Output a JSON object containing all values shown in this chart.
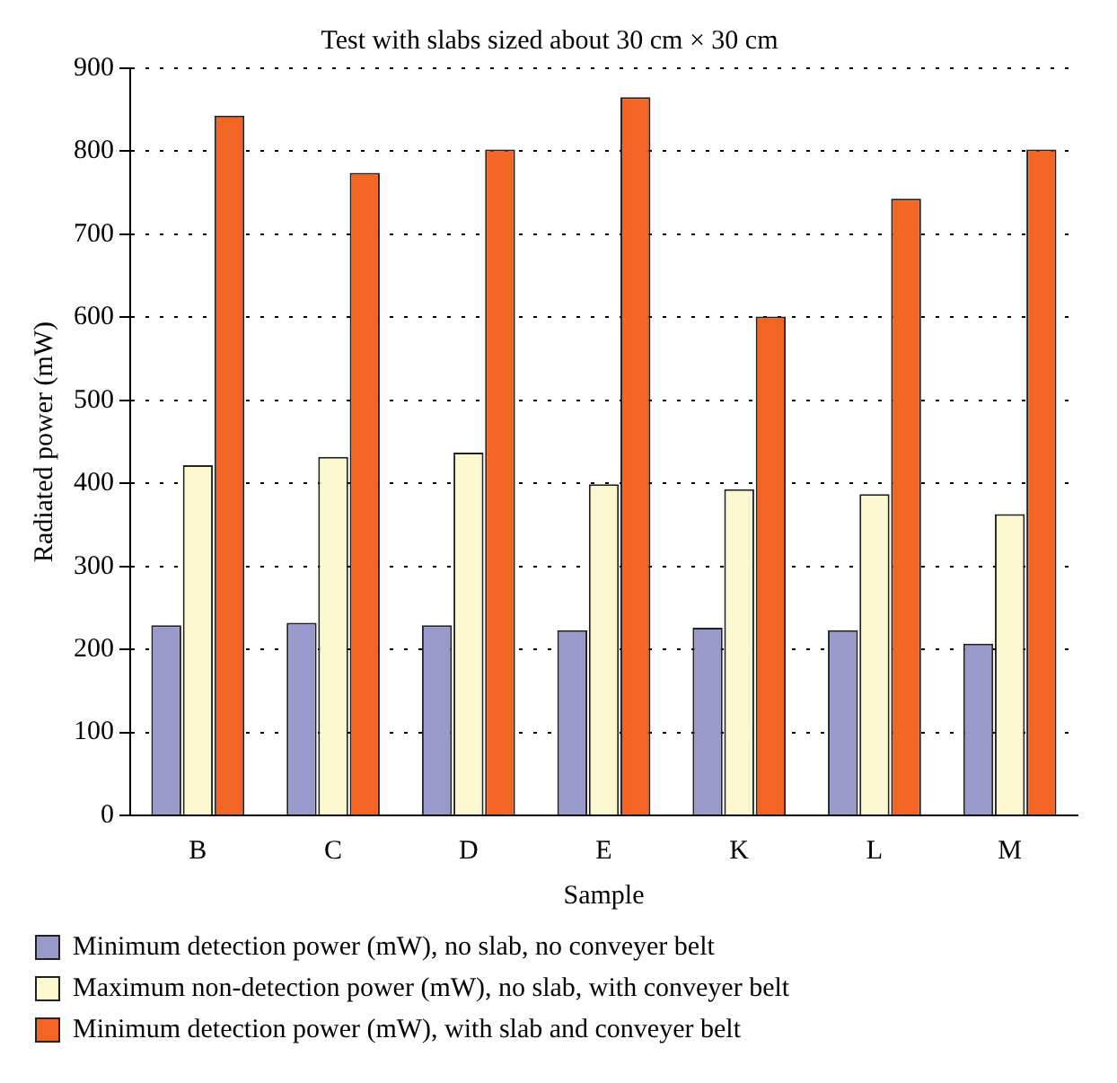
{
  "chart_data": {
    "type": "bar",
    "title": "Test with slabs sized about 30 cm × 30 cm",
    "xlabel": "Sample",
    "ylabel": "Radiated power (mW)",
    "categories": [
      "B",
      "C",
      "D",
      "E",
      "K",
      "L",
      "M"
    ],
    "series": [
      {
        "name": "Minimum detection power (mW), no slab, no conveyer belt",
        "color": "#9999cc",
        "values": [
          229,
          232,
          229,
          223,
          226,
          223,
          207
        ]
      },
      {
        "name": "Maximum non-detection power (mW), no slab, with conveyer belt",
        "color": "#fcf9d2",
        "values": [
          422,
          432,
          437,
          399,
          393,
          387,
          363
        ]
      },
      {
        "name": "Minimum detection power (mW), with slab and conveyer belt",
        "color": "#f26522",
        "values": [
          843,
          774,
          802,
          865,
          601,
          743,
          802
        ]
      }
    ],
    "ylim": [
      0,
      900
    ],
    "yticks": [
      0,
      100,
      200,
      300,
      400,
      500,
      600,
      700,
      800,
      900
    ],
    "grid": "y",
    "line_style": "dotted",
    "legend": "bottom"
  }
}
